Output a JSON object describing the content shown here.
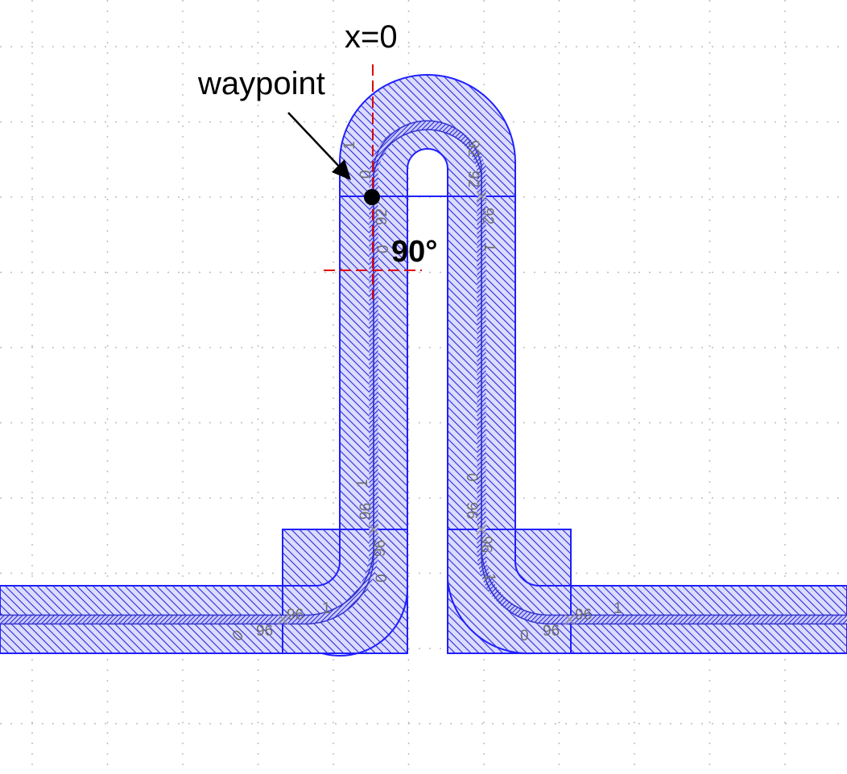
{
  "annotations": {
    "origin_label": "x=0",
    "waypoint_label": "waypoint",
    "angle_label": "90°"
  },
  "pin_labels": {
    "top_left_1": "1",
    "top_left_2": "0",
    "top_left_3": "92",
    "top_left_4": "0",
    "top_right_1": "92",
    "top_right_2": "92",
    "top_right_3": "92",
    "top_right_4": "1",
    "mid_left_1": "1",
    "mid_left_2": "96",
    "mid_left_3": "96",
    "mid_left_4": "0",
    "mid_right_1": "0",
    "mid_right_2": "96",
    "mid_right_3": "96",
    "mid_right_4": "1",
    "bot_left_1": "0",
    "bot_left_2": "96",
    "bot_left_3": "96",
    "bot_left_4": "1",
    "bot_right_1": "0",
    "bot_right_2": "96",
    "bot_right_3": "96",
    "bot_right_4": "1"
  },
  "colors": {
    "outline": "#1f1fff",
    "fill": "#dcdcff",
    "hatch": "#2b2bd6",
    "core": "#3333cc",
    "guide": "#e00000",
    "grid": "#bdbdbd",
    "waypoint": "#000000"
  }
}
